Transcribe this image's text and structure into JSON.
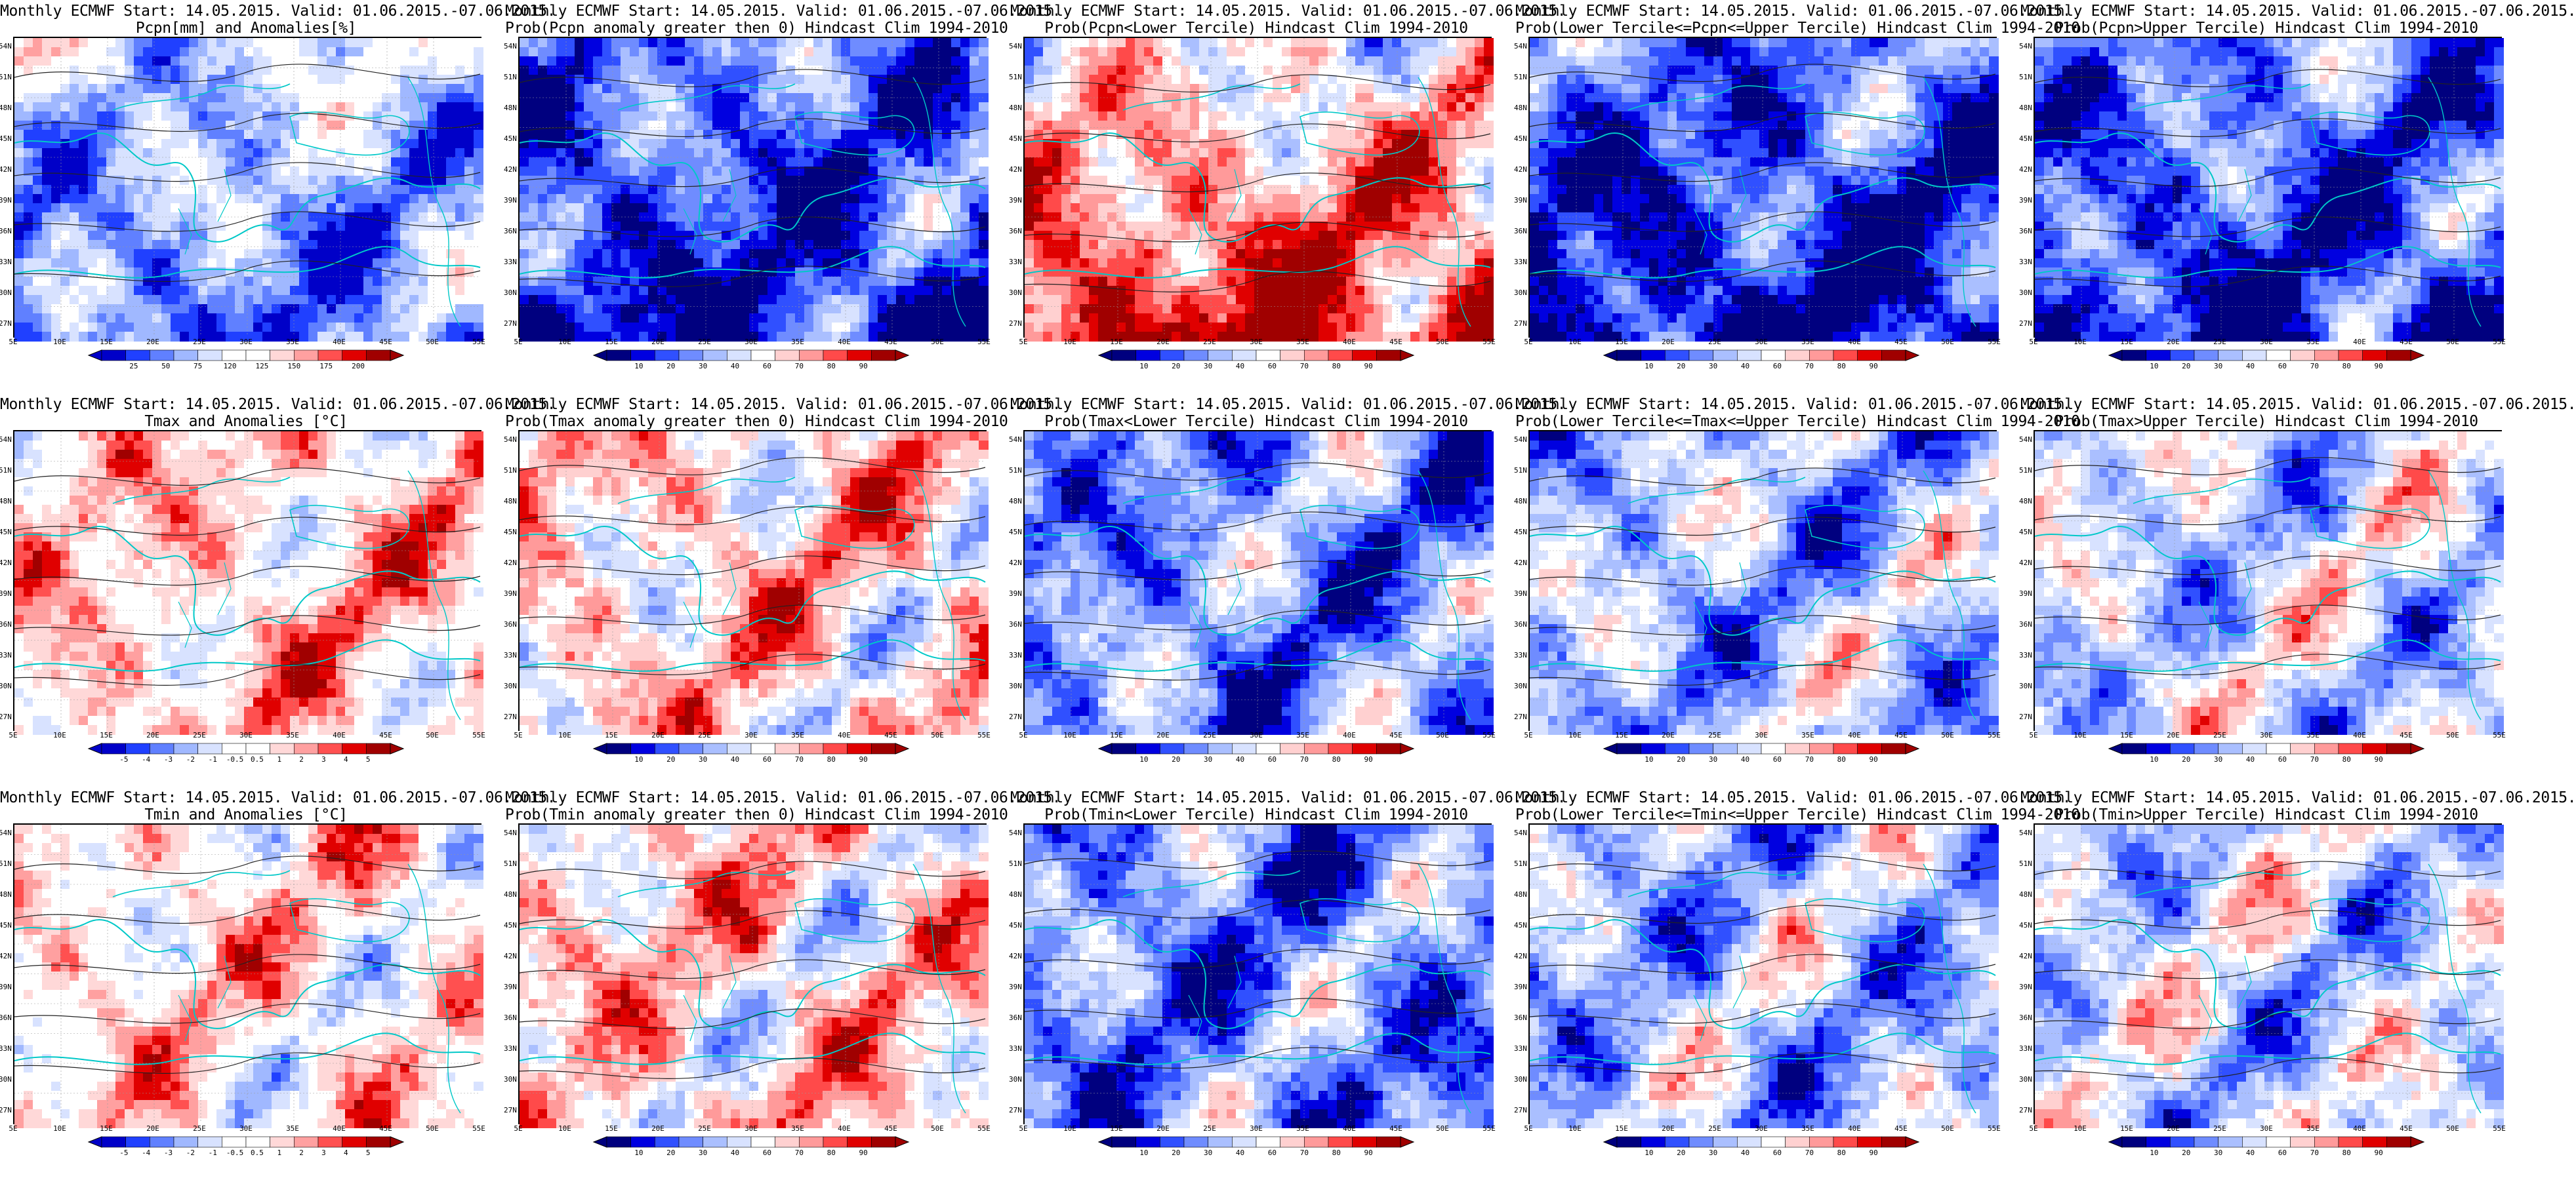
{
  "palettes": {
    "bluered": [
      "#00007f",
      "#0000e0",
      "#3050ff",
      "#6f8cff",
      "#aabfff",
      "#d8e2ff",
      "#ffffff",
      "#ffd0d0",
      "#ff9a9a",
      "#ff4a4a",
      "#e00000",
      "#a00000"
    ],
    "anom": [
      "#0000c8",
      "#2040ff",
      "#6080ff",
      "#a0b8ff",
      "#d8e2ff",
      "#ffffff",
      "#ffffff",
      "#ffd8d8",
      "#ffa0a0",
      "#ff5050",
      "#e00000",
      "#a00000"
    ]
  },
  "axes": {
    "lat_labels": [
      "54N",
      "51N",
      "48N",
      "45N",
      "42N",
      "39N",
      "36N",
      "33N",
      "30N",
      "27N"
    ],
    "lon_labels": [
      "5E",
      "10E",
      "15E",
      "20E",
      "25E",
      "30E",
      "35E",
      "40E",
      "45E",
      "50E",
      "55E"
    ]
  },
  "panels": [
    {
      "id": "p-pcpn-anom",
      "title1": "Monthly ECMWF Start: 14.05.2015. Valid: 01.06.2015.-07.06.2015.",
      "title2": "Pcpn[mm] and Anomalies[%]",
      "palette": "anom",
      "bias": -0.3,
      "ticks": [
        "25",
        "50",
        "75",
        "120",
        "125",
        "150",
        "175",
        "200"
      ]
    },
    {
      "id": "p-pcpn-gt0",
      "title1": "Monthly ECMWF Start: 14.05.2015. Valid: 01.06.2015.-07.06.2015.",
      "title2": "Prob(Pcpn anomaly greater then 0) Hindcast Clim 1994-2010",
      "palette": "bluered",
      "bias": -0.55,
      "ticks": [
        "10",
        "20",
        "30",
        "40",
        "60",
        "70",
        "80",
        "90"
      ]
    },
    {
      "id": "p-pcpn-lower",
      "title1": "Monthly ECMWF Start: 14.05.2015. Valid: 01.06.2015.-07.06.2015.",
      "title2": "Prob(Pcpn<Lower Tercile) Hindcast Clim 1994-2010",
      "palette": "bluered",
      "bias": 0.05,
      "ticks": [
        "10",
        "20",
        "30",
        "40",
        "60",
        "70",
        "80",
        "90"
      ]
    },
    {
      "id": "p-pcpn-middle",
      "title1": "Monthly ECMWF Start: 14.05.2015. Valid: 01.06.2015.-07.06.2015.",
      "title2": "Prob(Lower Tercile<=Pcpn<=Upper Tercile) Hindcast Clim 1994-2010",
      "palette": "bluered",
      "bias": -0.6,
      "ticks": [
        "10",
        "20",
        "30",
        "40",
        "60",
        "70",
        "80",
        "90"
      ]
    },
    {
      "id": "p-pcpn-upper",
      "title1": "Monthly ECMWF Start: 14.05.2015. Valid: 01.06.2015.-07.06.2015.",
      "title2": "Prob(Pcpn>Upper Tercile) Hindcast Clim 1994-2010",
      "palette": "bluered",
      "bias": -0.5,
      "ticks": [
        "10",
        "20",
        "30",
        "40",
        "60",
        "70",
        "80",
        "90"
      ]
    },
    {
      "id": "p-tmax-anom",
      "title1": "Monthly ECMWF Start: 14.05.2015. Valid: 01.06.2015.-07.06.2015.",
      "title2": "Tmax and Anomalies [°C]",
      "palette": "anom",
      "bias": 0.3,
      "ticks": [
        "-5",
        "-4",
        "-3",
        "-2",
        "-1",
        "-0.5",
        "0.5",
        "1",
        "2",
        "3",
        "4",
        "5"
      ]
    },
    {
      "id": "p-tmax-gt0",
      "title1": "Monthly ECMWF Start: 14.05.2015. Valid: 01.06.2015.-07.06.2015.",
      "title2": "Prob(Tmax anomaly greater then 0) Hindcast Clim 1994-2010",
      "palette": "bluered",
      "bias": 0.3,
      "ticks": [
        "10",
        "20",
        "30",
        "40",
        "60",
        "70",
        "80",
        "90"
      ]
    },
    {
      "id": "p-tmax-lower",
      "title1": "Monthly ECMWF Start: 14.05.2015. Valid: 01.06.2015.-07.06.2015.",
      "title2": "Prob(Tmax<Lower Tercile) Hindcast Clim 1994-2010",
      "palette": "bluered",
      "bias": -0.5,
      "ticks": [
        "10",
        "20",
        "30",
        "40",
        "60",
        "70",
        "80",
        "90"
      ]
    },
    {
      "id": "p-tmax-middle",
      "title1": "Monthly ECMWF Start: 14.05.2015. Valid: 01.06.2015.-07.06.2015.",
      "title2": "Prob(Lower Tercile<=Tmax<=Upper Tercile) Hindcast Clim 1994-2010",
      "palette": "bluered",
      "bias": -0.3,
      "ticks": [
        "10",
        "20",
        "30",
        "40",
        "60",
        "70",
        "80",
        "90"
      ]
    },
    {
      "id": "p-tmax-upper",
      "title1": "Monthly ECMWF Start: 14.05.2015. Valid: 01.06.2015.-07.06.2015.",
      "title2": "Prob(Tmax>Upper Tercile) Hindcast Clim 1994-2010",
      "palette": "bluered",
      "bias": -0.15,
      "ticks": [
        "10",
        "20",
        "30",
        "40",
        "60",
        "70",
        "80",
        "90"
      ]
    },
    {
      "id": "p-tmin-anom",
      "title1": "Monthly ECMWF Start: 14.05.2015. Valid: 01.06.2015.-07.06.2015.",
      "title2": "Tmin and Anomalies [°C]",
      "palette": "anom",
      "bias": 0.2,
      "ticks": [
        "-5",
        "-4",
        "-3",
        "-2",
        "-1",
        "-0.5",
        "0.5",
        "1",
        "2",
        "3",
        "4",
        "5"
      ]
    },
    {
      "id": "p-tmin-gt0",
      "title1": "Monthly ECMWF Start: 14.05.2015. Valid: 01.06.2015.-07.06.2015.",
      "title2": "Prob(Tmin anomaly greater then 0) Hindcast Clim 1994-2010",
      "palette": "bluered",
      "bias": 0.3,
      "ticks": [
        "10",
        "20",
        "30",
        "40",
        "60",
        "70",
        "80",
        "90"
      ]
    },
    {
      "id": "p-tmin-lower",
      "title1": "Monthly ECMWF Start: 14.05.2015. Valid: 01.06.2015.-07.06.2015.",
      "title2": "Prob(Tmin<Lower Tercile) Hindcast Clim 1994-2010",
      "palette": "bluered",
      "bias": -0.55,
      "ticks": [
        "10",
        "20",
        "30",
        "40",
        "60",
        "70",
        "80",
        "90"
      ]
    },
    {
      "id": "p-tmin-middle",
      "title1": "Monthly ECMWF Start: 14.05.2015. Valid: 01.06.2015.-07.06.2015.",
      "title2": "Prob(Lower Tercile<=Tmin<=Upper Tercile) Hindcast Clim 1994-2010",
      "palette": "bluered",
      "bias": -0.3,
      "ticks": [
        "10",
        "20",
        "30",
        "40",
        "60",
        "70",
        "80",
        "90"
      ]
    },
    {
      "id": "p-tmin-upper",
      "title1": "Monthly ECMWF Start: 14.05.2015. Valid: 01.06.2015.-07.06.2015.",
      "title2": "Prob(Tmin>Upper Tercile) Hindcast Clim 1994-2010",
      "palette": "bluered",
      "bias": -0.15,
      "ticks": [
        "10",
        "20",
        "30",
        "40",
        "60",
        "70",
        "80",
        "90"
      ]
    }
  ]
}
